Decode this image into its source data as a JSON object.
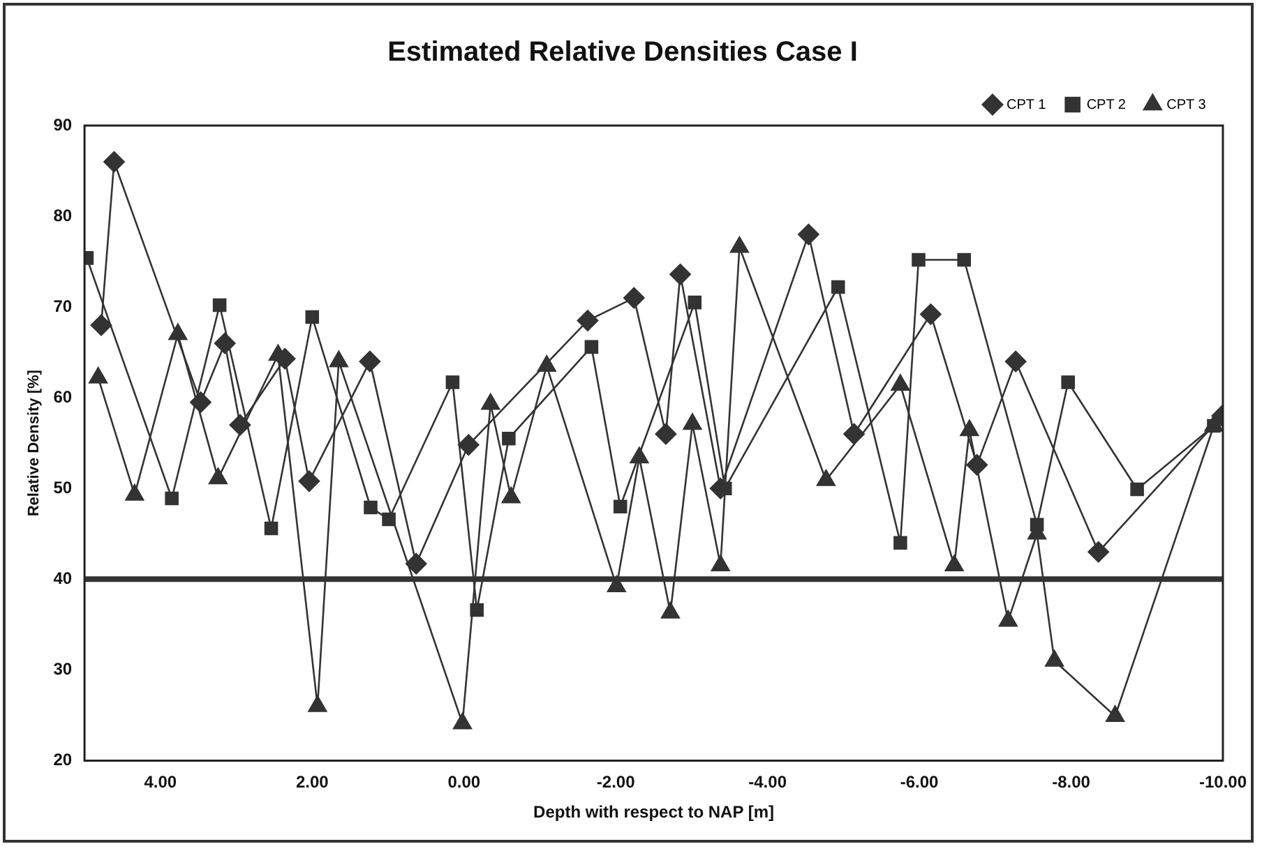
{
  "chart_data": {
    "type": "line",
    "title": "Estimated Relative Densities Case I",
    "xlabel": "Depth with respect to NAP [m]",
    "ylabel": "Relative Density [%]",
    "xlim": [
      5,
      -10
    ],
    "xticks": [
      {
        "value": 4,
        "label": "4.00"
      },
      {
        "value": 2,
        "label": "2.00"
      },
      {
        "value": 0,
        "label": "0.00"
      },
      {
        "value": -2,
        "label": "-2.00"
      },
      {
        "value": -4,
        "label": "-4.00"
      },
      {
        "value": -6,
        "label": "-6.00"
      },
      {
        "value": -8,
        "label": "-8.00"
      },
      {
        "value": -10,
        "label": "-10.00"
      }
    ],
    "ylim": [
      20,
      90
    ],
    "yticks": [
      20,
      30,
      40,
      50,
      60,
      70,
      80,
      90
    ],
    "grid": false,
    "legend": "top right",
    "line_style": "solid",
    "ref_lines": [
      {
        "axis": "y",
        "value": 40,
        "color": "#333333"
      }
    ],
    "series": [
      {
        "name": "CPT 1",
        "color": "#333333",
        "marker": "diamond",
        "x": [
          4.78,
          4.61,
          3.47,
          3.15,
          2.95,
          2.36,
          2.04,
          1.24,
          0.63,
          -0.06,
          -1.63,
          -2.24,
          -2.66,
          -2.85,
          -3.38,
          -4.54,
          -5.14,
          -6.15,
          -6.76,
          -7.27,
          -8.36,
          -9.99
        ],
        "values": [
          68,
          86,
          59.5,
          66,
          57,
          64.3,
          50.8,
          64,
          41.7,
          54.8,
          68.5,
          71,
          56,
          73.6,
          50,
          78,
          56,
          69.2,
          52.6,
          64,
          43,
          58
        ]
      },
      {
        "name": "CPT 2",
        "color": "#333333",
        "marker": "square",
        "x": [
          4.97,
          3.85,
          3.22,
          2.54,
          2,
          1.23,
          0.99,
          0.15,
          -0.17,
          -0.59,
          -1.68,
          -2.06,
          -3.04,
          -3.44,
          -4.93,
          -5.75,
          -5.99,
          -6.59,
          -7.55,
          -7.96,
          -8.87,
          -9.88
        ],
        "values": [
          75.4,
          48.9,
          70.2,
          45.6,
          68.9,
          47.9,
          46.6,
          61.7,
          36.6,
          55.5,
          65.6,
          48,
          70.5,
          50,
          72.2,
          44,
          75.2,
          75.2,
          46,
          61.7,
          49.9,
          56.9
        ]
      },
      {
        "name": "CPT 3",
        "color": "#333333",
        "marker": "triangle",
        "x": [
          4.82,
          4.34,
          3.77,
          3.24,
          2.45,
          1.93,
          1.65,
          0.02,
          -0.35,
          -0.62,
          -1.09,
          -2.01,
          -2.31,
          -2.72,
          -3.01,
          -3.38,
          -3.63,
          -4.77,
          -5.75,
          -6.46,
          -6.66,
          -7.17,
          -7.55,
          -7.78,
          -8.58,
          -9.88
        ],
        "values": [
          62.2,
          49.3,
          67,
          51.1,
          64.7,
          26,
          64,
          24.1,
          59.3,
          49,
          63.5,
          39.2,
          53.4,
          36.3,
          57.1,
          41.5,
          76.6,
          50.9,
          61.4,
          41.5,
          56.4,
          35.4,
          45,
          31,
          24.9,
          56.9
        ]
      }
    ]
  }
}
